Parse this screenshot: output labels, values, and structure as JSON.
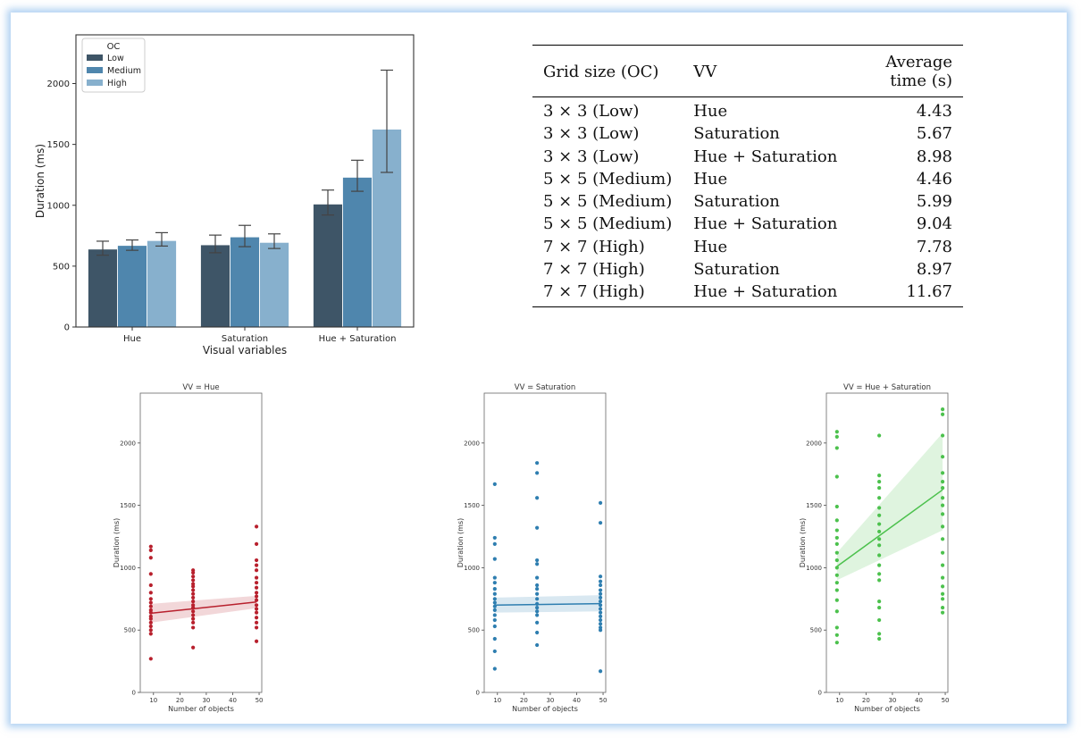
{
  "chart_data": [
    {
      "type": "bar",
      "categories": [
        "Hue",
        "Saturation",
        "Hue + Saturation"
      ],
      "xlabel": "Visual variables",
      "ylabel": "Duration (ms)",
      "ylim": [
        0,
        2400
      ],
      "yticks": [
        0,
        500,
        1000,
        1500,
        2000
      ],
      "legend": {
        "title": "OC",
        "placement": "top-left"
      },
      "series": [
        {
          "name": "Low",
          "color": "#3e5567",
          "values": [
            640,
            675,
            1010
          ],
          "err_low": [
            590,
            610,
            920
          ],
          "err_high": [
            705,
            755,
            1125
          ]
        },
        {
          "name": "Medium",
          "color": "#4f86ad",
          "values": [
            670,
            740,
            1230
          ],
          "err_low": [
            630,
            660,
            1115
          ],
          "err_high": [
            715,
            835,
            1370
          ]
        },
        {
          "name": "High",
          "color": "#87b0cd",
          "values": [
            710,
            695,
            1625
          ],
          "err_low": [
            665,
            645,
            1270
          ],
          "err_high": [
            775,
            765,
            2110
          ]
        }
      ]
    },
    {
      "type": "scatter",
      "title": "VV = Hue",
      "xlabel": "Number of objects",
      "ylabel": "Duration (ms)",
      "xlim": [
        5,
        51
      ],
      "ylim": [
        0,
        2400
      ],
      "xticks": [
        10,
        20,
        30,
        40,
        50
      ],
      "yticks": [
        0,
        500,
        1000,
        1500,
        2000
      ],
      "color": "#b8202d",
      "x": [
        9,
        9,
        9,
        9,
        9,
        9,
        9,
        9,
        9,
        9,
        9,
        9,
        9,
        9,
        9,
        9,
        9,
        9,
        25,
        25,
        25,
        25,
        25,
        25,
        25,
        25,
        25,
        25,
        25,
        25,
        25,
        25,
        25,
        25,
        25,
        25,
        49,
        49,
        49,
        49,
        49,
        49,
        49,
        49,
        49,
        49,
        49,
        49,
        49,
        49,
        49,
        49,
        49,
        49
      ],
      "y": [
        1170,
        1140,
        1080,
        950,
        860,
        800,
        750,
        720,
        690,
        660,
        640,
        610,
        590,
        560,
        530,
        500,
        470,
        270,
        980,
        960,
        930,
        900,
        870,
        850,
        820,
        790,
        760,
        730,
        700,
        680,
        650,
        620,
        590,
        560,
        520,
        360,
        1330,
        1190,
        1060,
        1020,
        980,
        920,
        880,
        840,
        800,
        770,
        740,
        700,
        670,
        640,
        600,
        560,
        520,
        410
      ],
      "fit": {
        "x": [
          9,
          49
        ],
        "y": [
          635,
          725
        ]
      },
      "ci_upper": [
        710,
        775
      ],
      "ci_lower": [
        560,
        675
      ]
    },
    {
      "type": "scatter",
      "title": "VV = Saturation",
      "xlabel": "Number of objects",
      "ylabel": "Duration (ms)",
      "xlim": [
        5,
        51
      ],
      "ylim": [
        0,
        2400
      ],
      "xticks": [
        10,
        20,
        30,
        40,
        50
      ],
      "yticks": [
        0,
        500,
        1000,
        1500,
        2000
      ],
      "color": "#2e7eb0",
      "x": [
        9,
        9,
        9,
        9,
        9,
        9,
        9,
        9,
        9,
        9,
        9,
        9,
        9,
        9,
        9,
        9,
        9,
        9,
        25,
        25,
        25,
        25,
        25,
        25,
        25,
        25,
        25,
        25,
        25,
        25,
        25,
        25,
        25,
        25,
        25,
        25,
        49,
        49,
        49,
        49,
        49,
        49,
        49,
        49,
        49,
        49,
        49,
        49,
        49,
        49,
        49,
        49,
        49,
        49
      ],
      "y": [
        1670,
        1240,
        1190,
        1070,
        920,
        880,
        830,
        790,
        750,
        720,
        690,
        660,
        620,
        580,
        530,
        430,
        330,
        190,
        1840,
        1760,
        1560,
        1320,
        1060,
        1030,
        920,
        860,
        830,
        790,
        750,
        710,
        680,
        650,
        620,
        560,
        480,
        380,
        1520,
        1360,
        930,
        890,
        860,
        820,
        790,
        760,
        730,
        700,
        670,
        640,
        610,
        580,
        550,
        520,
        500,
        170
      ],
      "fit": {
        "x": [
          9,
          49
        ],
        "y": [
          700,
          712
        ]
      },
      "ci_upper": [
        760,
        780
      ],
      "ci_lower": [
        640,
        650
      ]
    },
    {
      "type": "scatter",
      "title": "VV = Hue + Saturation",
      "xlabel": "Number of objects",
      "ylabel": "Duration (ms)",
      "xlim": [
        5,
        51
      ],
      "ylim": [
        0,
        2400
      ],
      "xticks": [
        10,
        20,
        30,
        40,
        50
      ],
      "yticks": [
        0,
        500,
        1000,
        1500,
        2000
      ],
      "color": "#4cc14d",
      "x": [
        9,
        9,
        9,
        9,
        9,
        9,
        9,
        9,
        9,
        9,
        9,
        9,
        9,
        9,
        9,
        9,
        9,
        9,
        9,
        9,
        25,
        25,
        25,
        25,
        25,
        25,
        25,
        25,
        25,
        25,
        25,
        25,
        25,
        25,
        25,
        25,
        25,
        25,
        25,
        25,
        49,
        49,
        49,
        49,
        49,
        49,
        49,
        49,
        49,
        49,
        49,
        49,
        49,
        49,
        49,
        49,
        49,
        49,
        49,
        49
      ],
      "y": [
        2090,
        2050,
        1960,
        1730,
        1490,
        1380,
        1300,
        1240,
        1190,
        1120,
        1060,
        1000,
        940,
        880,
        820,
        740,
        650,
        520,
        460,
        400,
        2060,
        1740,
        1690,
        1640,
        1560,
        1480,
        1420,
        1350,
        1290,
        1230,
        1180,
        1100,
        1020,
        950,
        900,
        730,
        680,
        580,
        470,
        430,
        2270,
        2230,
        2060,
        1890,
        1760,
        1690,
        1640,
        1560,
        1500,
        1430,
        1330,
        1230,
        1120,
        1020,
        920,
        850,
        790,
        750,
        680,
        640
      ],
      "fit": {
        "x": [
          9,
          49
        ],
        "y": [
          1010,
          1625
        ]
      },
      "ci_upper": [
        1120,
        2080
      ],
      "ci_lower": [
        900,
        1300
      ]
    }
  ],
  "table": {
    "headers": [
      "Grid size (OC)",
      "VV",
      "Average time (s)"
    ],
    "rows": [
      [
        "3 × 3 (Low)",
        "Hue",
        "4.43"
      ],
      [
        "3 × 3 (Low)",
        "Saturation",
        "5.67"
      ],
      [
        "3 × 3 (Low)",
        "Hue + Saturation",
        "8.98"
      ],
      [
        "5 × 5 (Medium)",
        "Hue",
        "4.46"
      ],
      [
        "5 × 5 (Medium)",
        "Saturation",
        "5.99"
      ],
      [
        "5 × 5 (Medium)",
        "Hue + Saturation",
        "9.04"
      ],
      [
        "7 × 7 (High)",
        "Hue",
        "7.78"
      ],
      [
        "7 × 7 (High)",
        "Saturation",
        "8.97"
      ],
      [
        "7 × 7 (High)",
        "Hue + Saturation",
        "11.67"
      ]
    ]
  }
}
